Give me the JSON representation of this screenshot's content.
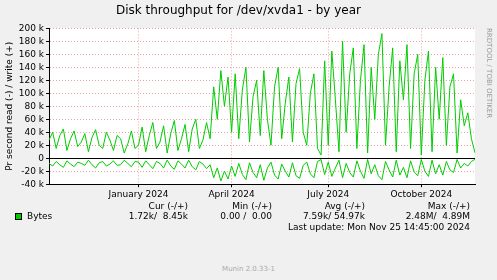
{
  "chart_data": {
    "type": "line",
    "title": "Disk throughput for /dev/xvda1 - by year",
    "y_label": "Pr second read (-) / write (+)",
    "categories": [
      null,
      null,
      null,
      null,
      null,
      null,
      null,
      null,
      null,
      null,
      null,
      null,
      null,
      null,
      null,
      null,
      null,
      null,
      null,
      null,
      null,
      null,
      null,
      null,
      null,
      "January 2024",
      null,
      null,
      null,
      null,
      null,
      null,
      null,
      null,
      null,
      null,
      null,
      null,
      null,
      null,
      null,
      null,
      null,
      null,
      null,
      null,
      null,
      null,
      null,
      null,
      null,
      "April 2024",
      null,
      null,
      null,
      null,
      null,
      null,
      null,
      null,
      null,
      null,
      null,
      null,
      null,
      null,
      null,
      null,
      null,
      null,
      null,
      null,
      null,
      null,
      null,
      null,
      null,
      null,
      "July 2024",
      null,
      null,
      null,
      null,
      null,
      null,
      null,
      null,
      null,
      null,
      null,
      null,
      null,
      null,
      null,
      null,
      null,
      null,
      null,
      null,
      null,
      null,
      null,
      null,
      null,
      "October 2024",
      null,
      null,
      null,
      null,
      null,
      null,
      null,
      null,
      null,
      null,
      null,
      null,
      null,
      null,
      null
    ],
    "series": [
      {
        "name": "Bytes",
        "color": "#00cc00",
        "values": [
          28000,
          40000,
          15000,
          35000,
          45000,
          12000,
          30000,
          42000,
          18000,
          25000,
          38000,
          10000,
          32000,
          44000,
          20000,
          15000,
          40000,
          28000,
          12000,
          35000,
          30000,
          8000,
          22000,
          42000,
          15000,
          20000,
          48000,
          10000,
          35000,
          55000,
          15000,
          25000,
          50000,
          8000,
          38000,
          58000,
          12000,
          30000,
          52000,
          10000,
          45000,
          60000,
          15000,
          28000,
          55000,
          30000,
          110000,
          60000,
          135000,
          80000,
          125000,
          40000,
          130000,
          30000,
          105000,
          140000,
          25000,
          95000,
          120000,
          35000,
          135000,
          60000,
          20000,
          110000,
          140000,
          30000,
          85000,
          125000,
          25000,
          115000,
          138000,
          40000,
          20000,
          100000,
          130000,
          15000,
          5000,
          150000,
          20000,
          165000,
          90000,
          10000,
          180000,
          40000,
          130000,
          170000,
          15000,
          120000,
          175000,
          8000,
          140000,
          60000,
          160000,
          192000,
          20000,
          110000,
          170000,
          10000,
          150000,
          90000,
          175000,
          15000,
          130000,
          160000,
          5000,
          120000,
          165000,
          10000,
          140000,
          60000,
          155000,
          20000,
          110000,
          130000,
          8000,
          90000,
          50000,
          70000,
          30000,
          8450
        ]
      },
      {
        "name": "Bytes",
        "color": "#00cc00",
        "values": [
          -8000,
          -12000,
          -5000,
          -10000,
          -14000,
          -4000,
          -9000,
          -13000,
          -6000,
          -8000,
          -11000,
          -3000,
          -10000,
          -15000,
          -7000,
          -5000,
          -12000,
          -9000,
          -4000,
          -11000,
          -10000,
          -3000,
          -8000,
          -13000,
          -5000,
          -6000,
          -14000,
          -4000,
          -10000,
          -16000,
          -5000,
          -8000,
          -15000,
          -3000,
          -12000,
          -17000,
          -4000,
          -9000,
          -15000,
          -3000,
          -13000,
          -18000,
          -5000,
          -9000,
          -16000,
          -10000,
          -30000,
          -15000,
          -35000,
          -20000,
          -32000,
          -12000,
          -28000,
          -8000,
          -25000,
          -33000,
          -7000,
          -22000,
          -30000,
          -10000,
          -34000,
          -15000,
          -6000,
          -26000,
          -32000,
          -9000,
          -20000,
          -29000,
          -7000,
          -27000,
          -31000,
          -11000,
          -6000,
          -24000,
          -30000,
          -5000,
          -2000,
          -25000,
          -6000,
          -28000,
          -15000,
          -3000,
          -30000,
          -8000,
          -22000,
          -29000,
          -4000,
          -20000,
          -31000,
          -2000,
          -24000,
          -10000,
          -27000,
          -33000,
          -5000,
          -18000,
          -29000,
          -3000,
          -26000,
          -14000,
          -30000,
          -4000,
          -21000,
          -27000,
          -2000,
          -20000,
          -28000,
          -3000,
          -24000,
          -10000,
          -26000,
          -5000,
          -18000,
          -22000,
          -2000,
          -15000,
          -8000,
          -12000,
          -5000,
          -1720
        ]
      }
    ],
    "ylim": [
      -40000,
      200000
    ],
    "yticks": [
      {
        "value": -40000,
        "label": "-40 k"
      },
      {
        "value": -20000,
        "label": "-20 k"
      },
      0,
      {
        "value": 20000,
        "label": "20 k"
      },
      {
        "value": 40000,
        "label": "40 k"
      },
      {
        "value": 60000,
        "label": "60 k"
      },
      {
        "value": 80000,
        "label": "80 k"
      },
      {
        "value": 100000,
        "label": "100 k"
      },
      {
        "value": 120000,
        "label": "120 k"
      },
      {
        "value": 140000,
        "label": "140 k"
      },
      {
        "value": 160000,
        "label": "160 k"
      },
      {
        "value": 180000,
        "label": "180 k"
      },
      {
        "value": 200000,
        "label": "200 k"
      }
    ],
    "grid": true,
    "summary": {
      "columns": [
        "Cur (-/+)",
        "Min (-/+)",
        "Avg (-/+)",
        "Max (-/+)"
      ],
      "cells": [
        "1.72k/  8.45k",
        "0.00 /  0.00",
        "7.59k/ 54.97k",
        "2.48M/  4.89M"
      ]
    },
    "footer": "Last update: Mon Nov 25 14:45:00 2024",
    "credit": "Munin 2.0.33-1",
    "side_label": "RRDTOOL / TOBI OETIKER"
  }
}
